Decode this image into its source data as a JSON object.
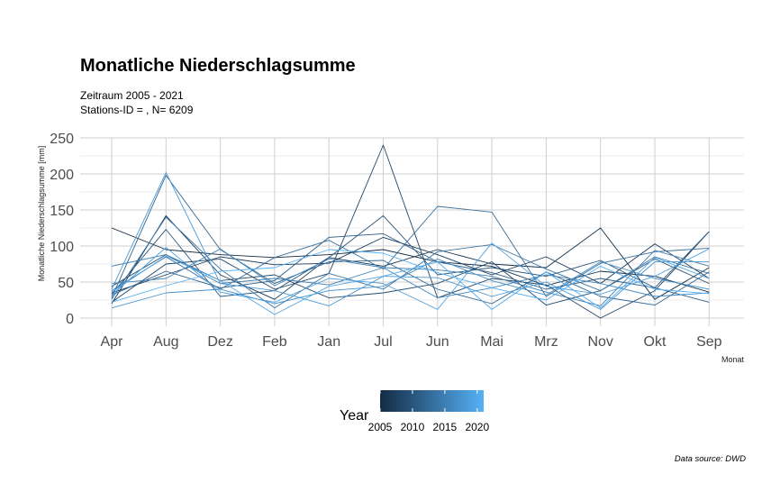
{
  "chart_data": {
    "type": "line",
    "title": "Monatliche Niederschlagsumme",
    "subtitle_line1": "Zeitraum 2005 - 2021",
    "subtitle_line2": "Stations-ID = , N= 6209",
    "ylabel": "Monatliche Niederschlagsumme [mm]",
    "xlabel": "Monat",
    "caption": "Data source: DWD",
    "ylim": [
      0,
      250
    ],
    "yticks": [
      "0",
      "50",
      "100",
      "150",
      "200",
      "250"
    ],
    "categories": [
      "Apr",
      "Aug",
      "Dez",
      "Feb",
      "Jan",
      "Jul",
      "Jun",
      "Mai",
      "Mrz",
      "Nov",
      "Okt",
      "Sep"
    ],
    "legend": {
      "title": "Year",
      "min": 2005,
      "max": 2021,
      "ticks": [
        "2005",
        "2010",
        "2015",
        "2020"
      ],
      "color_low": "#132b43",
      "color_high": "#56b1f7"
    },
    "series": [
      {
        "name": "2005",
        "values": [
          125,
          95,
          88,
          84,
          88,
          95,
          78,
          72,
          45,
          65,
          58,
          36
        ]
      },
      {
        "name": "2006",
        "values": [
          20,
          142,
          60,
          26,
          84,
          72,
          95,
          75,
          70,
          125,
          26,
          70
        ]
      },
      {
        "name": "2007",
        "values": [
          35,
          60,
          85,
          74,
          76,
          112,
          88,
          60,
          85,
          48,
          103,
          55
        ]
      },
      {
        "name": "2008",
        "values": [
          22,
          75,
          82,
          40,
          62,
          240,
          28,
          55,
          46,
          0,
          38,
          120
        ]
      },
      {
        "name": "2009",
        "values": [
          44,
          88,
          52,
          60,
          28,
          35,
          48,
          78,
          18,
          38,
          82,
          48
        ]
      },
      {
        "name": "2010",
        "values": [
          33,
          123,
          30,
          38,
          84,
          142,
          60,
          70,
          58,
          80,
          42,
          120
        ]
      },
      {
        "name": "2011",
        "values": [
          32,
          65,
          42,
          52,
          112,
          117,
          78,
          63,
          40,
          55,
          42,
          22
        ]
      },
      {
        "name": "2012",
        "values": [
          28,
          198,
          95,
          48,
          78,
          80,
          40,
          20,
          64,
          30,
          18,
          64
        ]
      },
      {
        "name": "2013",
        "values": [
          38,
          85,
          40,
          84,
          108,
          68,
          155,
          147,
          30,
          76,
          92,
          97
        ]
      },
      {
        "name": "2014",
        "values": [
          26,
          140,
          68,
          14,
          62,
          40,
          92,
          102,
          68,
          38,
          85,
          62
        ]
      },
      {
        "name": "2015",
        "values": [
          72,
          88,
          48,
          55,
          46,
          70,
          67,
          58,
          36,
          17,
          94,
          72
        ]
      },
      {
        "name": "2016",
        "values": [
          48,
          55,
          96,
          45,
          82,
          70,
          28,
          42,
          60,
          48,
          30,
          35
        ]
      },
      {
        "name": "2017",
        "values": [
          14,
          35,
          40,
          20,
          38,
          44,
          82,
          52,
          32,
          78,
          55,
          40
        ]
      },
      {
        "name": "2018",
        "values": [
          40,
          202,
          48,
          38,
          17,
          58,
          56,
          30,
          50,
          12,
          78,
          78
        ]
      },
      {
        "name": "2019",
        "values": [
          32,
          98,
          36,
          22,
          55,
          48,
          12,
          104,
          44,
          33,
          58,
          96
        ]
      },
      {
        "name": "2020",
        "values": [
          36,
          86,
          52,
          5,
          44,
          58,
          78,
          12,
          64,
          14,
          84,
          55
        ]
      },
      {
        "name": "2021",
        "values": [
          22,
          45,
          65,
          70,
          95,
          90,
          63,
          42,
          25,
          72,
          40,
          34
        ]
      }
    ]
  }
}
